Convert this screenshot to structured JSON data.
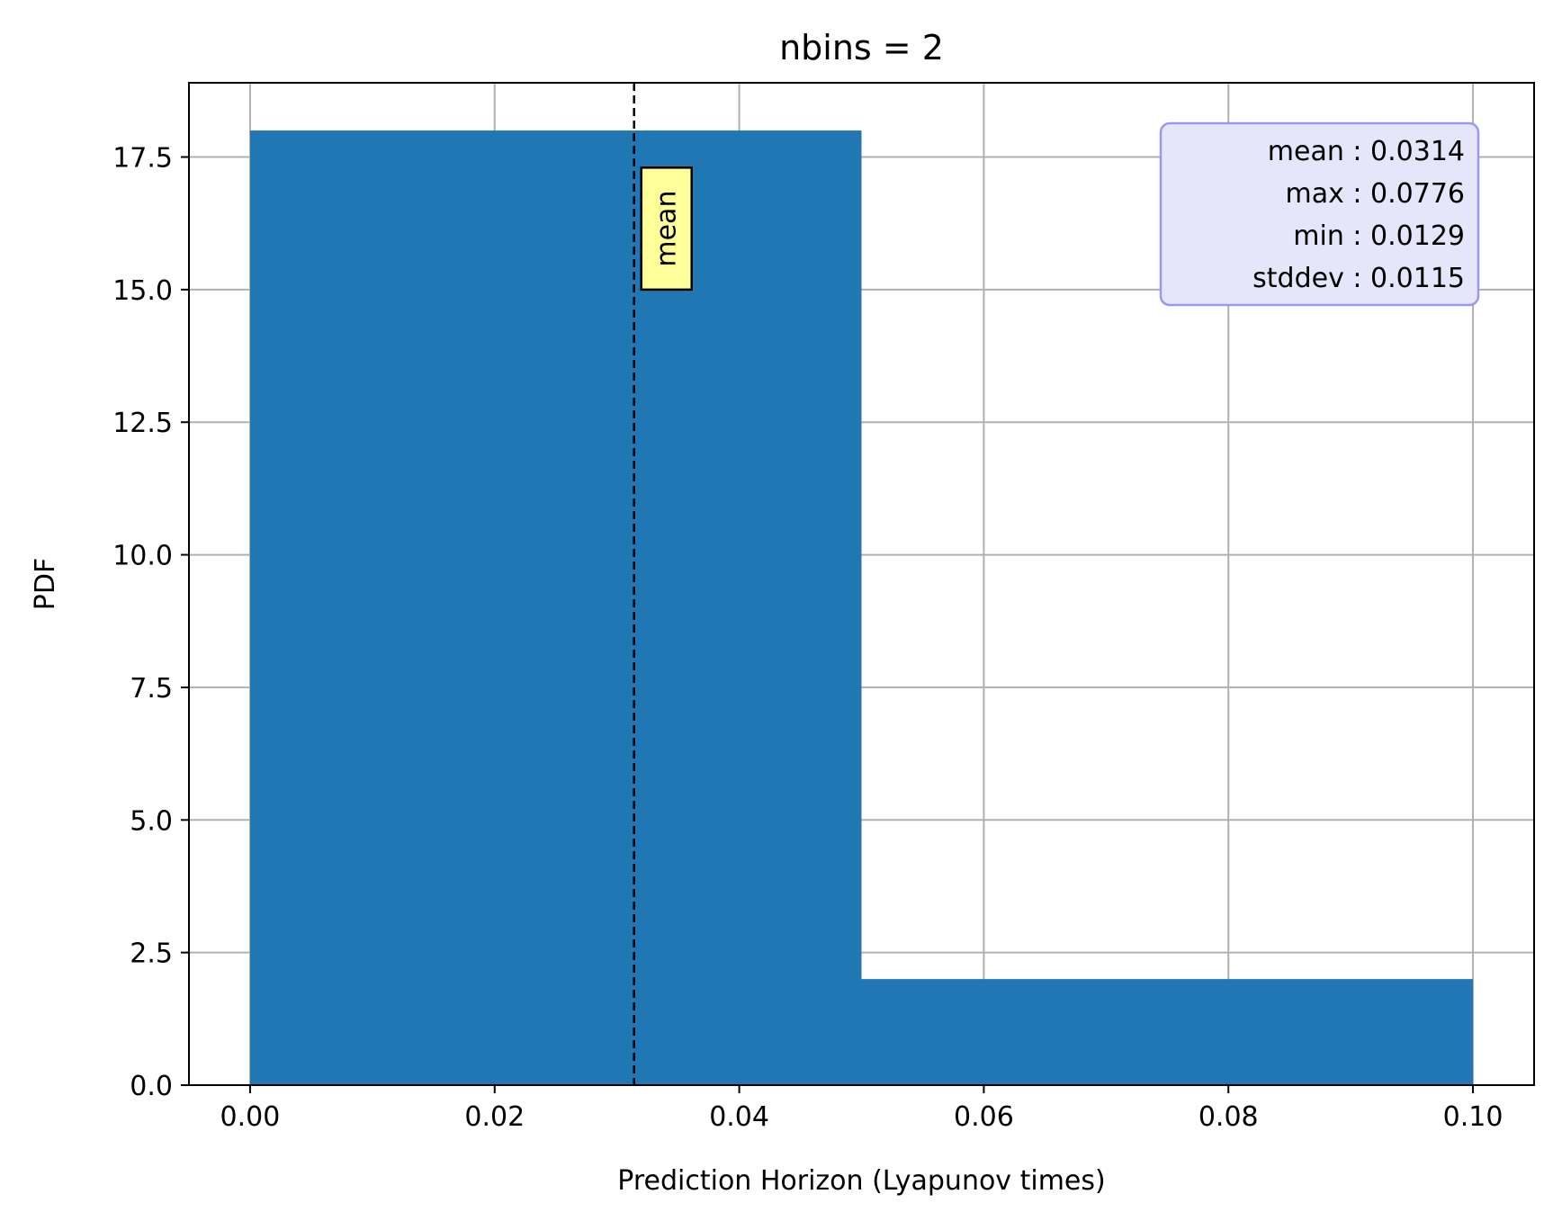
{
  "chart_data": {
    "type": "bar",
    "title": "nbins = 2",
    "xlabel": "Prediction Horizon (Lyapunov times)",
    "ylabel": "PDF",
    "xlim": [
      -0.005,
      0.105
    ],
    "ylim": [
      0,
      18.9
    ],
    "grid": true,
    "bins": [
      {
        "x0": 0.0,
        "x1": 0.05,
        "value": 18.0
      },
      {
        "x0": 0.05,
        "x1": 0.1,
        "value": 2.0
      }
    ],
    "bar_color": "#2077b4",
    "x_ticks": [
      {
        "value": 0.0,
        "label": "0.00"
      },
      {
        "value": 0.02,
        "label": "0.02"
      },
      {
        "value": 0.04,
        "label": "0.04"
      },
      {
        "value": 0.06,
        "label": "0.06"
      },
      {
        "value": 0.08,
        "label": "0.08"
      },
      {
        "value": 0.1,
        "label": "0.10"
      }
    ],
    "y_ticks": [
      {
        "value": 0.0,
        "label": "0.0"
      },
      {
        "value": 2.5,
        "label": "2.5"
      },
      {
        "value": 5.0,
        "label": "5.0"
      },
      {
        "value": 7.5,
        "label": "7.5"
      },
      {
        "value": 10.0,
        "label": "10.0"
      },
      {
        "value": 12.5,
        "label": "12.5"
      },
      {
        "value": 15.0,
        "label": "15.0"
      },
      {
        "value": 17.5,
        "label": "17.5"
      }
    ],
    "mean_line": {
      "x": 0.0314,
      "style": "dashed",
      "label": "mean",
      "label_y_range": [
        15.0,
        17.3
      ],
      "label_bg": "#ffff99"
    },
    "stats_box": {
      "placement": "top-right",
      "bg_color": "#e6e6fa",
      "border_color": "#9999ee",
      "lines": [
        "mean : 0.0314",
        "max : 0.0776",
        "min : 0.0129",
        "stddev : 0.0115"
      ]
    }
  }
}
